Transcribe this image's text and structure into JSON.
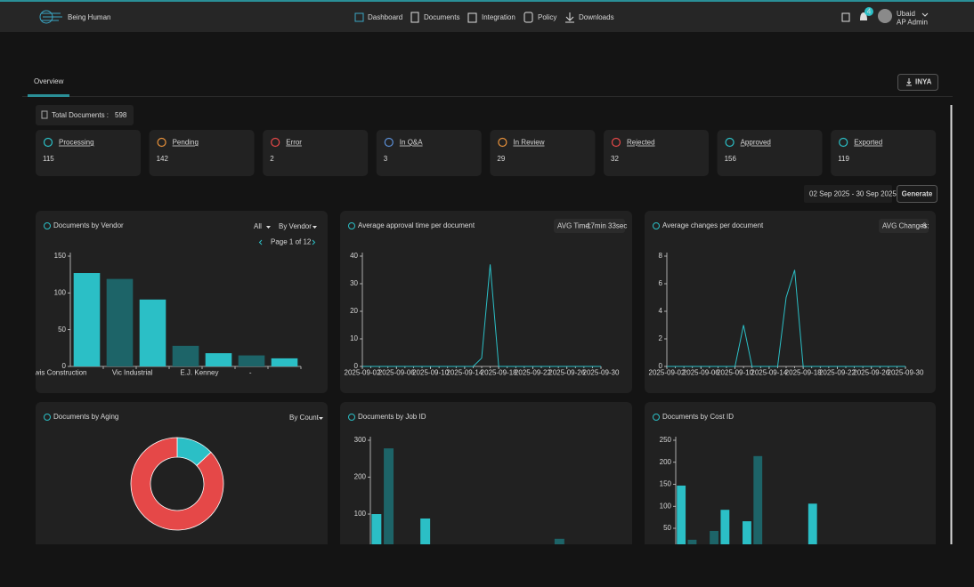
{
  "header": {
    "brand": "Being Human",
    "nav": [
      "Dashboard",
      "Documents",
      "Integration",
      "Policy",
      "Downloads"
    ],
    "notifications": 4,
    "user": "Ubaid",
    "role": "AP Admin"
  },
  "tabs": [
    "Overview"
  ],
  "export_button": "INYA",
  "total": {
    "label": "Total Documents :",
    "value": 598
  },
  "status_cards": [
    {
      "label": "Processing",
      "value": 115
    },
    {
      "label": "Pending",
      "value": 142
    },
    {
      "label": "Error",
      "value": 2
    },
    {
      "label": "In Q&A",
      "value": 3
    },
    {
      "label": "In Review",
      "value": 29
    },
    {
      "label": "Rejected",
      "value": 32
    },
    {
      "label": "Approved",
      "value": 156
    },
    {
      "label": "Exported",
      "value": 119
    }
  ],
  "date_range": "02 Sep 2025 - 30 Sep 2025",
  "generate_button": "Generate",
  "chart_data": [
    {
      "type": "bar",
      "title": "Documents by Vendor",
      "controls": [
        "All",
        "By Vendor"
      ],
      "pagination": "Page 1 of 12",
      "categories": [
        "Lewis Construction",
        null,
        "Vic Industrial",
        null,
        "E.J. Kenney",
        "-",
        null
      ],
      "values": [
        127,
        119,
        91,
        28,
        18,
        15,
        11
      ],
      "colors": [
        "#2bbfc6",
        "#1d6468"
      ],
      "ylim": [
        0,
        150
      ],
      "yticks": [
        0,
        50,
        100,
        150
      ]
    },
    {
      "type": "line",
      "title": "Average approval time per document",
      "stat_label": "AVG Time:",
      "stat_value": "17min 33sec",
      "x": [
        "2025-09-02",
        "2025-09-03",
        "2025-09-04",
        "2025-09-05",
        "2025-09-06",
        "2025-09-07",
        "2025-09-08",
        "2025-09-09",
        "2025-09-10",
        "2025-09-11",
        "2025-09-12",
        "2025-09-13",
        "2025-09-14",
        "2025-09-15",
        "2025-09-16",
        "2025-09-17",
        "2025-09-18",
        "2025-09-19",
        "2025-09-20",
        "2025-09-21",
        "2025-09-22",
        "2025-09-23",
        "2025-09-24",
        "2025-09-25",
        "2025-09-26",
        "2025-09-27",
        "2025-09-28",
        "2025-09-29",
        "2025-09-30"
      ],
      "values": [
        0,
        0,
        0,
        0,
        0,
        0,
        0,
        0,
        0,
        0,
        0,
        0,
        0,
        0,
        3,
        37,
        0,
        0,
        0,
        0,
        0,
        0,
        0,
        0,
        0,
        0,
        0,
        0,
        0
      ],
      "color": "#2bbfc6",
      "xlim": [
        "2025-09-02",
        "2025-09-30"
      ],
      "xticks": [
        "2025-09-02",
        "2025-09-06",
        "2025-09-10",
        "2025-09-14",
        "2025-09-18",
        "2025-09-22",
        "2025-09-26",
        "2025-09-30"
      ],
      "ylim": [
        0,
        40
      ],
      "yticks": [
        0,
        10,
        20,
        30,
        40
      ]
    },
    {
      "type": "line",
      "title": "Average changes per document",
      "stat_label": "AVG Changes:",
      "stat_value": 6,
      "x": [
        "2025-09-02",
        "2025-09-03",
        "2025-09-04",
        "2025-09-05",
        "2025-09-06",
        "2025-09-07",
        "2025-09-08",
        "2025-09-09",
        "2025-09-10",
        "2025-09-11",
        "2025-09-12",
        "2025-09-13",
        "2025-09-14",
        "2025-09-15",
        "2025-09-16",
        "2025-09-17",
        "2025-09-18",
        "2025-09-19",
        "2025-09-20",
        "2025-09-21",
        "2025-09-22",
        "2025-09-23",
        "2025-09-24",
        "2025-09-25",
        "2025-09-26",
        "2025-09-27",
        "2025-09-28",
        "2025-09-29",
        "2025-09-30"
      ],
      "values": [
        0,
        0,
        0,
        0,
        0,
        0,
        0,
        0,
        0,
        3,
        0,
        0,
        0,
        0,
        5,
        7,
        0,
        0,
        0,
        0,
        0,
        0,
        0,
        0,
        0,
        0,
        0,
        0,
        0
      ],
      "color": "#2bbfc6",
      "xlim": [
        "2025-09-02",
        "2025-09-30"
      ],
      "xticks": [
        "2025-09-02",
        "2025-09-06",
        "2025-09-10",
        "2025-09-14",
        "2025-09-18",
        "2025-09-22",
        "2025-09-26",
        "2025-09-30"
      ],
      "ylim": [
        0,
        8
      ],
      "yticks": [
        0,
        2,
        4,
        6,
        8
      ]
    },
    {
      "type": "pie",
      "title": "Documents by Aging",
      "controls": [
        "By Count"
      ],
      "values": [
        78,
        520
      ],
      "colors": [
        "#2bbfc6",
        "#e54848"
      ],
      "donut": true
    },
    {
      "type": "bar",
      "title": "Documents by Job ID",
      "categories": [
        null,
        null,
        null,
        null,
        null,
        null,
        null,
        null,
        null,
        null,
        null,
        null,
        null,
        null,
        null,
        null,
        null,
        null,
        null,
        null
      ],
      "values": [
        100,
        278,
        0,
        0,
        88,
        0,
        0,
        0,
        0,
        0,
        0,
        0,
        0,
        0,
        0,
        33,
        0,
        0,
        0,
        0
      ],
      "colors": [
        "#2bbfc6",
        "#1d6468"
      ],
      "ylim": [
        0,
        300
      ],
      "yticks": [
        100,
        200,
        300
      ]
    },
    {
      "type": "bar",
      "title": "Documents by Cost ID",
      "categories": [
        null,
        null,
        null,
        null,
        null,
        null,
        null,
        null,
        null,
        null,
        null,
        null,
        null,
        null,
        null,
        null,
        null,
        null,
        null,
        null,
        null,
        null
      ],
      "values": [
        147,
        24,
        0,
        44,
        92,
        0,
        66,
        214,
        0,
        0,
        0,
        0,
        106,
        0,
        0,
        0,
        0,
        0,
        0,
        0,
        0,
        0
      ],
      "colors": [
        "#2bbfc6",
        "#1d6468"
      ],
      "ylim": [
        0,
        250
      ],
      "yticks": [
        50,
        100,
        150,
        200,
        250
      ]
    }
  ]
}
